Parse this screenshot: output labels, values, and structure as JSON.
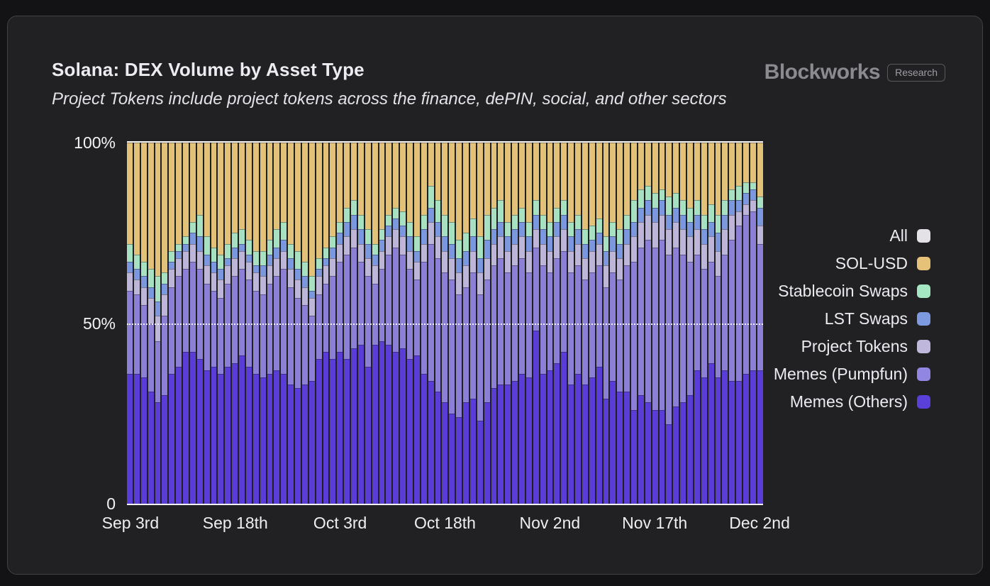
{
  "header": {
    "title": "Solana: DEX Volume by Asset Type",
    "subtitle": "Project Tokens include project tokens across the finance, dePIN, social, and other sectors",
    "logo_text": "Blockworks",
    "logo_badge": "Research"
  },
  "colors": {
    "page_bg": "#131316",
    "card_bg": "#212124",
    "card_border": "#414146",
    "axis_line": "#f2f2f4",
    "title_text": "#ededf1",
    "logo_gray": "#8a8a8f"
  },
  "chart_data": {
    "type": "bar",
    "stacked": true,
    "unit": "percent_of_total",
    "title": "Solana: DEX Volume by Asset Type",
    "ylim": [
      0,
      100
    ],
    "grid": "50% dotted horizontal line, solid lines at 0 and 100%",
    "legend_position": "right",
    "y_ticks": [
      {
        "label": "100%",
        "value": 100
      },
      {
        "label": "50%",
        "value": 50
      },
      {
        "label": "0",
        "value": 0
      }
    ],
    "x_tick_labels": [
      "Sep 3rd",
      "Sep 18th",
      "Oct 3rd",
      "Oct 18th",
      "Nov 2nd",
      "Nov 17th",
      "Dec 2nd"
    ],
    "x_tick_indices": [
      0,
      15,
      30,
      45,
      60,
      75,
      90
    ],
    "categories": [
      "Sep 3",
      "Sep 4",
      "Sep 5",
      "Sep 6",
      "Sep 7",
      "Sep 8",
      "Sep 9",
      "Sep 10",
      "Sep 11",
      "Sep 12",
      "Sep 13",
      "Sep 14",
      "Sep 15",
      "Sep 16",
      "Sep 17",
      "Sep 18",
      "Sep 19",
      "Sep 20",
      "Sep 21",
      "Sep 22",
      "Sep 23",
      "Sep 24",
      "Sep 25",
      "Sep 26",
      "Sep 27",
      "Sep 28",
      "Sep 29",
      "Sep 30",
      "Oct 1",
      "Oct 2",
      "Oct 3",
      "Oct 4",
      "Oct 5",
      "Oct 6",
      "Oct 7",
      "Oct 8",
      "Oct 9",
      "Oct 10",
      "Oct 11",
      "Oct 12",
      "Oct 13",
      "Oct 14",
      "Oct 15",
      "Oct 16",
      "Oct 17",
      "Oct 18",
      "Oct 19",
      "Oct 20",
      "Oct 21",
      "Oct 22",
      "Oct 23",
      "Oct 24",
      "Oct 25",
      "Oct 26",
      "Oct 27",
      "Oct 28",
      "Oct 29",
      "Oct 30",
      "Oct 31",
      "Nov 1",
      "Nov 2",
      "Nov 3",
      "Nov 4",
      "Nov 5",
      "Nov 6",
      "Nov 7",
      "Nov 8",
      "Nov 9",
      "Nov 10",
      "Nov 11",
      "Nov 12",
      "Nov 13",
      "Nov 14",
      "Nov 15",
      "Nov 16",
      "Nov 17",
      "Nov 18",
      "Nov 19",
      "Nov 20",
      "Nov 21",
      "Nov 22",
      "Nov 23",
      "Nov 24",
      "Nov 25",
      "Nov 26",
      "Nov 27",
      "Nov 28",
      "Nov 29",
      "Nov 30",
      "Dec 1",
      "Dec 2"
    ],
    "series": [
      {
        "name": "Memes (Others)",
        "color": "#5a3cd6",
        "values": [
          36,
          36,
          35,
          31,
          28,
          30,
          36,
          38,
          42,
          42,
          40,
          37,
          38,
          36,
          38,
          39,
          41,
          38,
          36,
          35,
          36,
          37,
          36,
          33,
          32,
          33,
          34,
          40,
          42,
          40,
          42,
          40,
          43,
          44,
          38,
          44,
          45,
          44,
          42,
          43,
          40,
          41,
          36,
          34,
          31,
          28,
          25,
          24,
          28,
          29,
          23,
          28,
          32,
          33,
          33,
          34,
          36,
          35,
          48,
          36,
          37,
          39,
          42,
          33,
          36,
          33,
          35,
          38,
          29,
          34,
          31,
          31,
          26,
          30,
          28,
          26,
          26,
          22,
          27,
          28,
          30,
          37,
          35,
          39,
          35,
          37,
          34,
          34,
          36,
          37,
          37
        ]
      },
      {
        "name": "Memes (Pumpfun)",
        "color": "#8b80d6",
        "values": [
          23,
          22,
          20,
          19,
          17,
          22,
          24,
          25,
          23,
          25,
          25,
          24,
          21,
          21,
          23,
          24,
          24,
          24,
          23,
          23,
          25,
          26,
          29,
          27,
          25,
          22,
          18,
          18,
          19,
          23,
          25,
          29,
          28,
          23,
          25,
          17,
          20,
          25,
          29,
          26,
          25,
          21,
          31,
          38,
          37,
          36,
          37,
          34,
          32,
          35,
          35,
          34,
          34,
          35,
          31,
          32,
          32,
          29,
          23,
          30,
          27,
          29,
          28,
          31,
          30,
          29,
          29,
          28,
          31,
          30,
          31,
          35,
          41,
          41,
          45,
          45,
          47,
          47,
          44,
          41,
          37,
          32,
          30,
          28,
          28,
          32,
          39,
          43,
          44,
          44,
          35
        ]
      },
      {
        "name": "Project Tokens",
        "color": "#beb6d8",
        "values": [
          5,
          4,
          5,
          7,
          7,
          6,
          5,
          5,
          5,
          5,
          5,
          5,
          5,
          5,
          5,
          5,
          5,
          5,
          5,
          5,
          5,
          5,
          5,
          5,
          5,
          5,
          5,
          5,
          5,
          5,
          5,
          5,
          5,
          5,
          5,
          5,
          5,
          5,
          5,
          5,
          5,
          5,
          5,
          6,
          6,
          6,
          6,
          6,
          6,
          6,
          6,
          6,
          6,
          6,
          6,
          6,
          6,
          6,
          5,
          6,
          6,
          6,
          6,
          6,
          6,
          6,
          6,
          6,
          6,
          6,
          6,
          6,
          7,
          7,
          7,
          7,
          7,
          7,
          7,
          7,
          7,
          7,
          7,
          7,
          7,
          7,
          7,
          4,
          3,
          3,
          5
        ]
      },
      {
        "name": "LST Swaps",
        "color": "#7b98de",
        "values": [
          3,
          3,
          3,
          3,
          4,
          3,
          2,
          2,
          2,
          3,
          4,
          3,
          3,
          3,
          2,
          3,
          2,
          2,
          2,
          3,
          3,
          3,
          3,
          3,
          3,
          3,
          2,
          2,
          2,
          3,
          3,
          4,
          4,
          4,
          4,
          3,
          3,
          3,
          3,
          3,
          4,
          3,
          4,
          4,
          4,
          4,
          4,
          4,
          4,
          4,
          4,
          5,
          4,
          4,
          4,
          4,
          4,
          4,
          4,
          4,
          4,
          4,
          4,
          4,
          4,
          4,
          3,
          3,
          4,
          4,
          4,
          4,
          4,
          4,
          4,
          4,
          4,
          4,
          4,
          4,
          4,
          4,
          4,
          4,
          5,
          4,
          4,
          3,
          3,
          3,
          5
        ]
      },
      {
        "name": "Stablecoin Swaps",
        "color": "#a8e0c2",
        "values": [
          5,
          4,
          4,
          5,
          7,
          3,
          3,
          2,
          2,
          3,
          6,
          5,
          4,
          4,
          4,
          4,
          4,
          4,
          4,
          4,
          4,
          5,
          5,
          4,
          5,
          4,
          4,
          3,
          3,
          3,
          3,
          4,
          4,
          4,
          4,
          3,
          3,
          3,
          3,
          4,
          4,
          4,
          4,
          6,
          6,
          6,
          6,
          5,
          5,
          5,
          6,
          7,
          6,
          6,
          4,
          4,
          4,
          4,
          4,
          4,
          4,
          4,
          4,
          4,
          4,
          4,
          4,
          4,
          4,
          4,
          4,
          4,
          6,
          5,
          4,
          4,
          3,
          5,
          4,
          4,
          4,
          4,
          4,
          5,
          5,
          4,
          3,
          4,
          3,
          2,
          3
        ]
      },
      {
        "name": "SOL-USD",
        "color": "#e2c179",
        "values": [
          28,
          31,
          33,
          35,
          37,
          36,
          30,
          28,
          26,
          22,
          20,
          26,
          29,
          31,
          28,
          25,
          24,
          27,
          30,
          30,
          27,
          24,
          22,
          28,
          30,
          33,
          37,
          32,
          29,
          26,
          22,
          18,
          16,
          20,
          24,
          28,
          24,
          20,
          18,
          19,
          22,
          26,
          20,
          12,
          16,
          20,
          22,
          27,
          25,
          21,
          26,
          20,
          18,
          16,
          22,
          20,
          18,
          22,
          16,
          20,
          22,
          18,
          16,
          22,
          20,
          24,
          23,
          21,
          26,
          22,
          24,
          20,
          16,
          13,
          12,
          14,
          13,
          15,
          14,
          16,
          18,
          16,
          20,
          17,
          20,
          16,
          13,
          12,
          11,
          11,
          15
        ]
      }
    ],
    "legend": [
      {
        "label": "All",
        "color": "#e4e2e6"
      },
      {
        "label": "SOL-USD",
        "color": "#e6c278"
      },
      {
        "label": "Stablecoin Swaps",
        "color": "#a5e6c3"
      },
      {
        "label": "LST Swaps",
        "color": "#7d9ae0"
      },
      {
        "label": "Project Tokens",
        "color": "#bfb7dc"
      },
      {
        "label": "Memes (Pumpfun)",
        "color": "#9187e2"
      },
      {
        "label": "Memes (Others)",
        "color": "#5b3fd9"
      }
    ]
  }
}
